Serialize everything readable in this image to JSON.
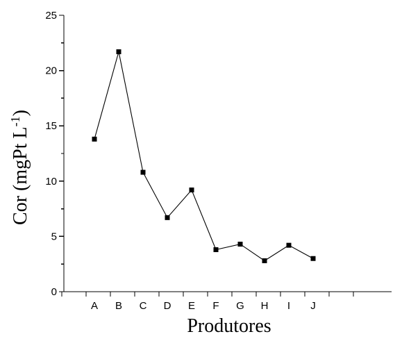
{
  "chart_data": {
    "type": "line",
    "title": "",
    "xlabel": "Produtores",
    "ylabel": "Cor (mgPt L",
    "ylabel_superscript": "-1",
    "ylabel_close": ")",
    "categories": [
      "A",
      "B",
      "C",
      "D",
      "E",
      "F",
      "G",
      "H",
      "I",
      "J"
    ],
    "series": [
      {
        "values": [
          13.8,
          21.7,
          10.8,
          6.7,
          9.2,
          3.8,
          4.3,
          2.8,
          4.2,
          3.0
        ],
        "marker": "square",
        "color": "#000000"
      }
    ],
    "ylim": [
      0,
      25
    ],
    "yticks": [
      0,
      5,
      10,
      15,
      20,
      25
    ],
    "grid": false,
    "legend": "none"
  }
}
